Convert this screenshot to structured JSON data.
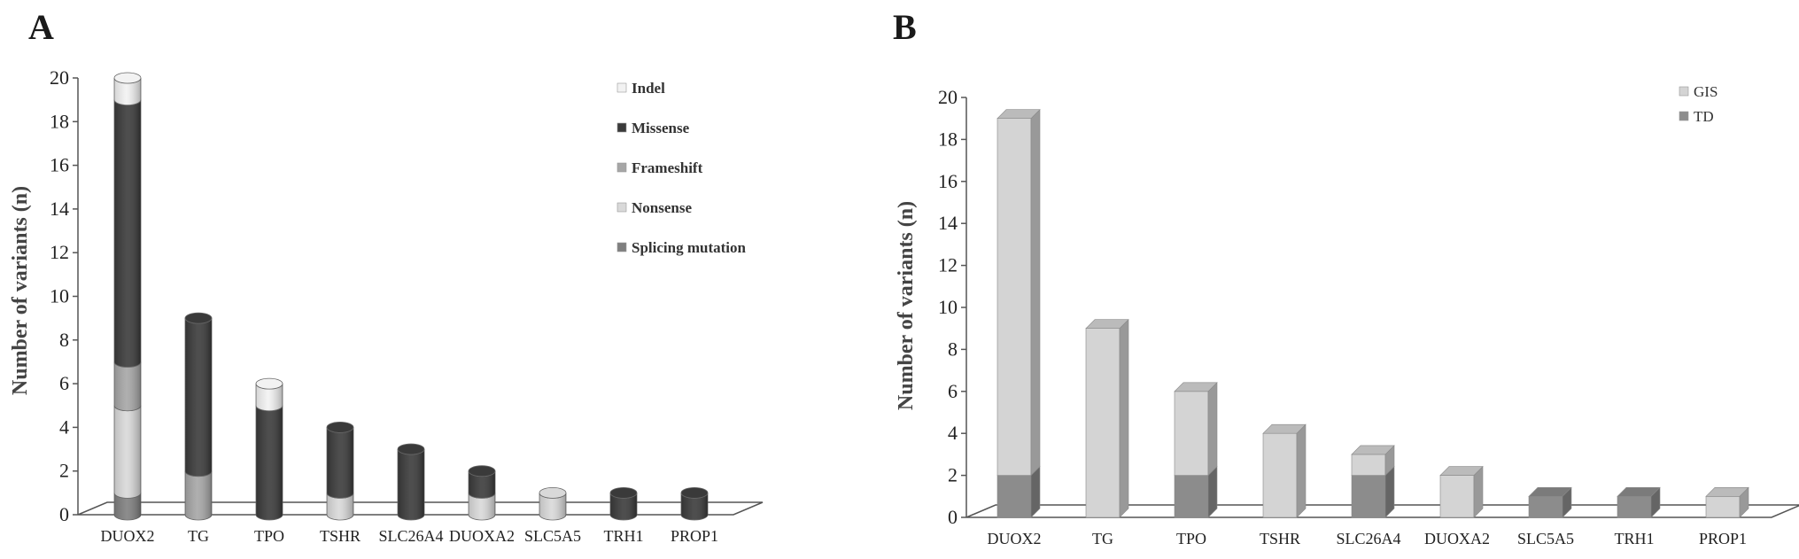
{
  "chart_data": [
    {
      "panel_label": "A",
      "type": "bar",
      "stacked": true,
      "style": "3d-cylinder",
      "ylabel": "Number of variants (n)",
      "ylim": [
        0,
        20
      ],
      "yticks": [
        0,
        2,
        4,
        6,
        8,
        10,
        12,
        14,
        16,
        18,
        20
      ],
      "legend_position": "top-right",
      "grid": false,
      "categories": [
        "DUOX2",
        "TG",
        "TPO",
        "TSHR",
        "SLC26A4",
        "DUOXA2",
        "SLC5A5",
        "TRH1",
        "PROP1"
      ],
      "series": [
        {
          "name": "Splicing mutation",
          "color": "#7f7f7f",
          "values": [
            1,
            0,
            0,
            0,
            0,
            0,
            0,
            0,
            0
          ]
        },
        {
          "name": "Nonsense",
          "color": "#d9d9d9",
          "values": [
            4,
            0,
            0,
            1,
            0,
            1,
            1,
            0,
            0
          ]
        },
        {
          "name": "Frameshift",
          "color": "#a6a6a6",
          "values": [
            2,
            2,
            0,
            0,
            0,
            0,
            0,
            0,
            0
          ]
        },
        {
          "name": "Missense",
          "color": "#3a3a3a",
          "values": [
            12,
            7,
            5,
            3,
            3,
            1,
            0,
            1,
            1
          ]
        },
        {
          "name": "Indel",
          "color": "#f2f2f2",
          "values": [
            1,
            0,
            1,
            0,
            0,
            0,
            0,
            0,
            0
          ]
        }
      ],
      "legend_order": [
        "Indel",
        "Missense",
        "Frameshift",
        "Nonsense",
        "Splicing mutation"
      ]
    },
    {
      "panel_label": "B",
      "type": "bar",
      "stacked": true,
      "style": "3d-box",
      "ylabel": "Number of variants (n)",
      "ylim": [
        0,
        20
      ],
      "yticks": [
        0,
        2,
        4,
        6,
        8,
        10,
        12,
        14,
        16,
        18,
        20
      ],
      "legend_position": "top-right",
      "grid": false,
      "categories": [
        "DUOX2",
        "TG",
        "TPO",
        "TSHR",
        "SLC26A4",
        "DUOXA2",
        "SLC5A5",
        "TRH1",
        "PROP1"
      ],
      "series": [
        {
          "name": "TD",
          "color": "#8c8c8c",
          "values": [
            2,
            0,
            2,
            0,
            2,
            0,
            1,
            1,
            0
          ]
        },
        {
          "name": "GIS",
          "color": "#d4d4d4",
          "values": [
            17,
            9,
            4,
            4,
            1,
            2,
            0,
            0,
            1
          ]
        }
      ],
      "legend_order": [
        "GIS",
        "TD"
      ]
    }
  ]
}
